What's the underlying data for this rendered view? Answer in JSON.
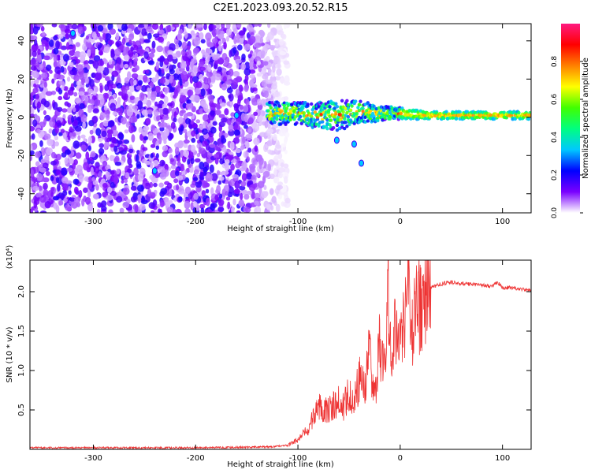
{
  "title": "C2E1.2023.093.20.52.R15",
  "colorbar": {
    "label": "Normalized spectral amplitude",
    "ticks": [
      "0.0",
      "0.2",
      "0.4",
      "0.6",
      "0.8"
    ],
    "tick_values": [
      0.0,
      0.2,
      0.4,
      0.6,
      0.8
    ],
    "range": [
      0,
      1
    ],
    "colors": [
      "#ffffff",
      "#7a00ff",
      "#0000ff",
      "#00c8ff",
      "#00ff80",
      "#40ff00",
      "#ffff00",
      "#ff8000",
      "#ff0000",
      "#ff1a80"
    ]
  },
  "chart_data": [
    {
      "type": "heatmap",
      "name": "spectrogram",
      "xlabel": "Height of straight line (km)",
      "ylabel": "Frequency (Hz)",
      "xlim": [
        -362,
        128
      ],
      "ylim": [
        -50,
        49
      ],
      "xticks": [
        -300,
        -200,
        -100,
        0,
        100
      ],
      "xtick_labels": [
        "-300",
        "-200",
        "-100",
        "0",
        "100"
      ],
      "yticks": [
        -40,
        -20,
        0,
        20,
        40
      ],
      "ytick_labels": [
        "-40",
        "-20",
        "0",
        "20",
        "40"
      ],
      "grid": false,
      "noise_region_x": [
        -362,
        -120
      ],
      "signal_band": {
        "x": [
          -130,
          -100,
          -80,
          -60,
          -40,
          -20,
          0,
          30,
          60,
          90,
          128
        ],
        "freq_center": [
          2,
          2,
          1,
          1,
          3,
          2,
          2,
          1,
          1,
          1,
          1
        ],
        "freq_halfwidth": [
          6,
          6,
          7,
          8,
          6,
          4,
          3,
          2,
          2,
          2,
          2
        ]
      },
      "scatter_features": [
        {
          "x": -62,
          "y": -12
        },
        {
          "x": -45,
          "y": -14
        },
        {
          "x": -38,
          "y": -24
        },
        {
          "x": -240,
          "y": -28
        },
        {
          "x": -320,
          "y": 44
        },
        {
          "x": -160,
          "y": 1
        }
      ]
    },
    {
      "type": "line",
      "name": "snr",
      "xlabel": "Height of straight line (km)",
      "ylabel": "SNR (10 * v/v)",
      "y_multiplier_label": "(x10⁴)",
      "xlim": [
        -362,
        128
      ],
      "ylim": [
        0,
        2.4
      ],
      "xticks": [
        -300,
        -200,
        -100,
        0,
        100
      ],
      "xtick_labels": [
        "-300",
        "-200",
        "-100",
        "0",
        "100"
      ],
      "yticks": [
        0.5,
        1.0,
        1.5,
        2.0
      ],
      "ytick_labels": [
        "0.5",
        "1.0",
        "1.5",
        "2.0"
      ],
      "color": "#ee3333",
      "grid": false,
      "series": [
        {
          "x": [
            -362,
            -300,
            -200,
            -130,
            -110,
            -100,
            -90,
            -85,
            -80,
            -70,
            -60,
            -55,
            -50,
            -45,
            -40,
            -35,
            -30,
            -25,
            -20,
            -15,
            -12,
            -10,
            -5,
            0,
            5,
            9,
            10,
            15,
            20,
            25,
            30,
            40,
            50,
            60,
            70,
            80,
            90,
            95,
            100,
            110,
            120,
            128
          ],
          "y": [
            0.02,
            0.02,
            0.02,
            0.03,
            0.05,
            0.12,
            0.25,
            0.4,
            0.55,
            0.5,
            0.6,
            0.55,
            0.75,
            0.6,
            0.9,
            0.8,
            1.2,
            0.7,
            1.35,
            0.9,
            2.3,
            1.3,
            1.5,
            1.6,
            1.7,
            2.4,
            1.3,
            1.75,
            1.85,
            2.0,
            2.05,
            2.1,
            2.12,
            2.1,
            2.1,
            2.08,
            2.07,
            2.12,
            2.05,
            2.05,
            2.03,
            2.02
          ]
        }
      ]
    }
  ]
}
